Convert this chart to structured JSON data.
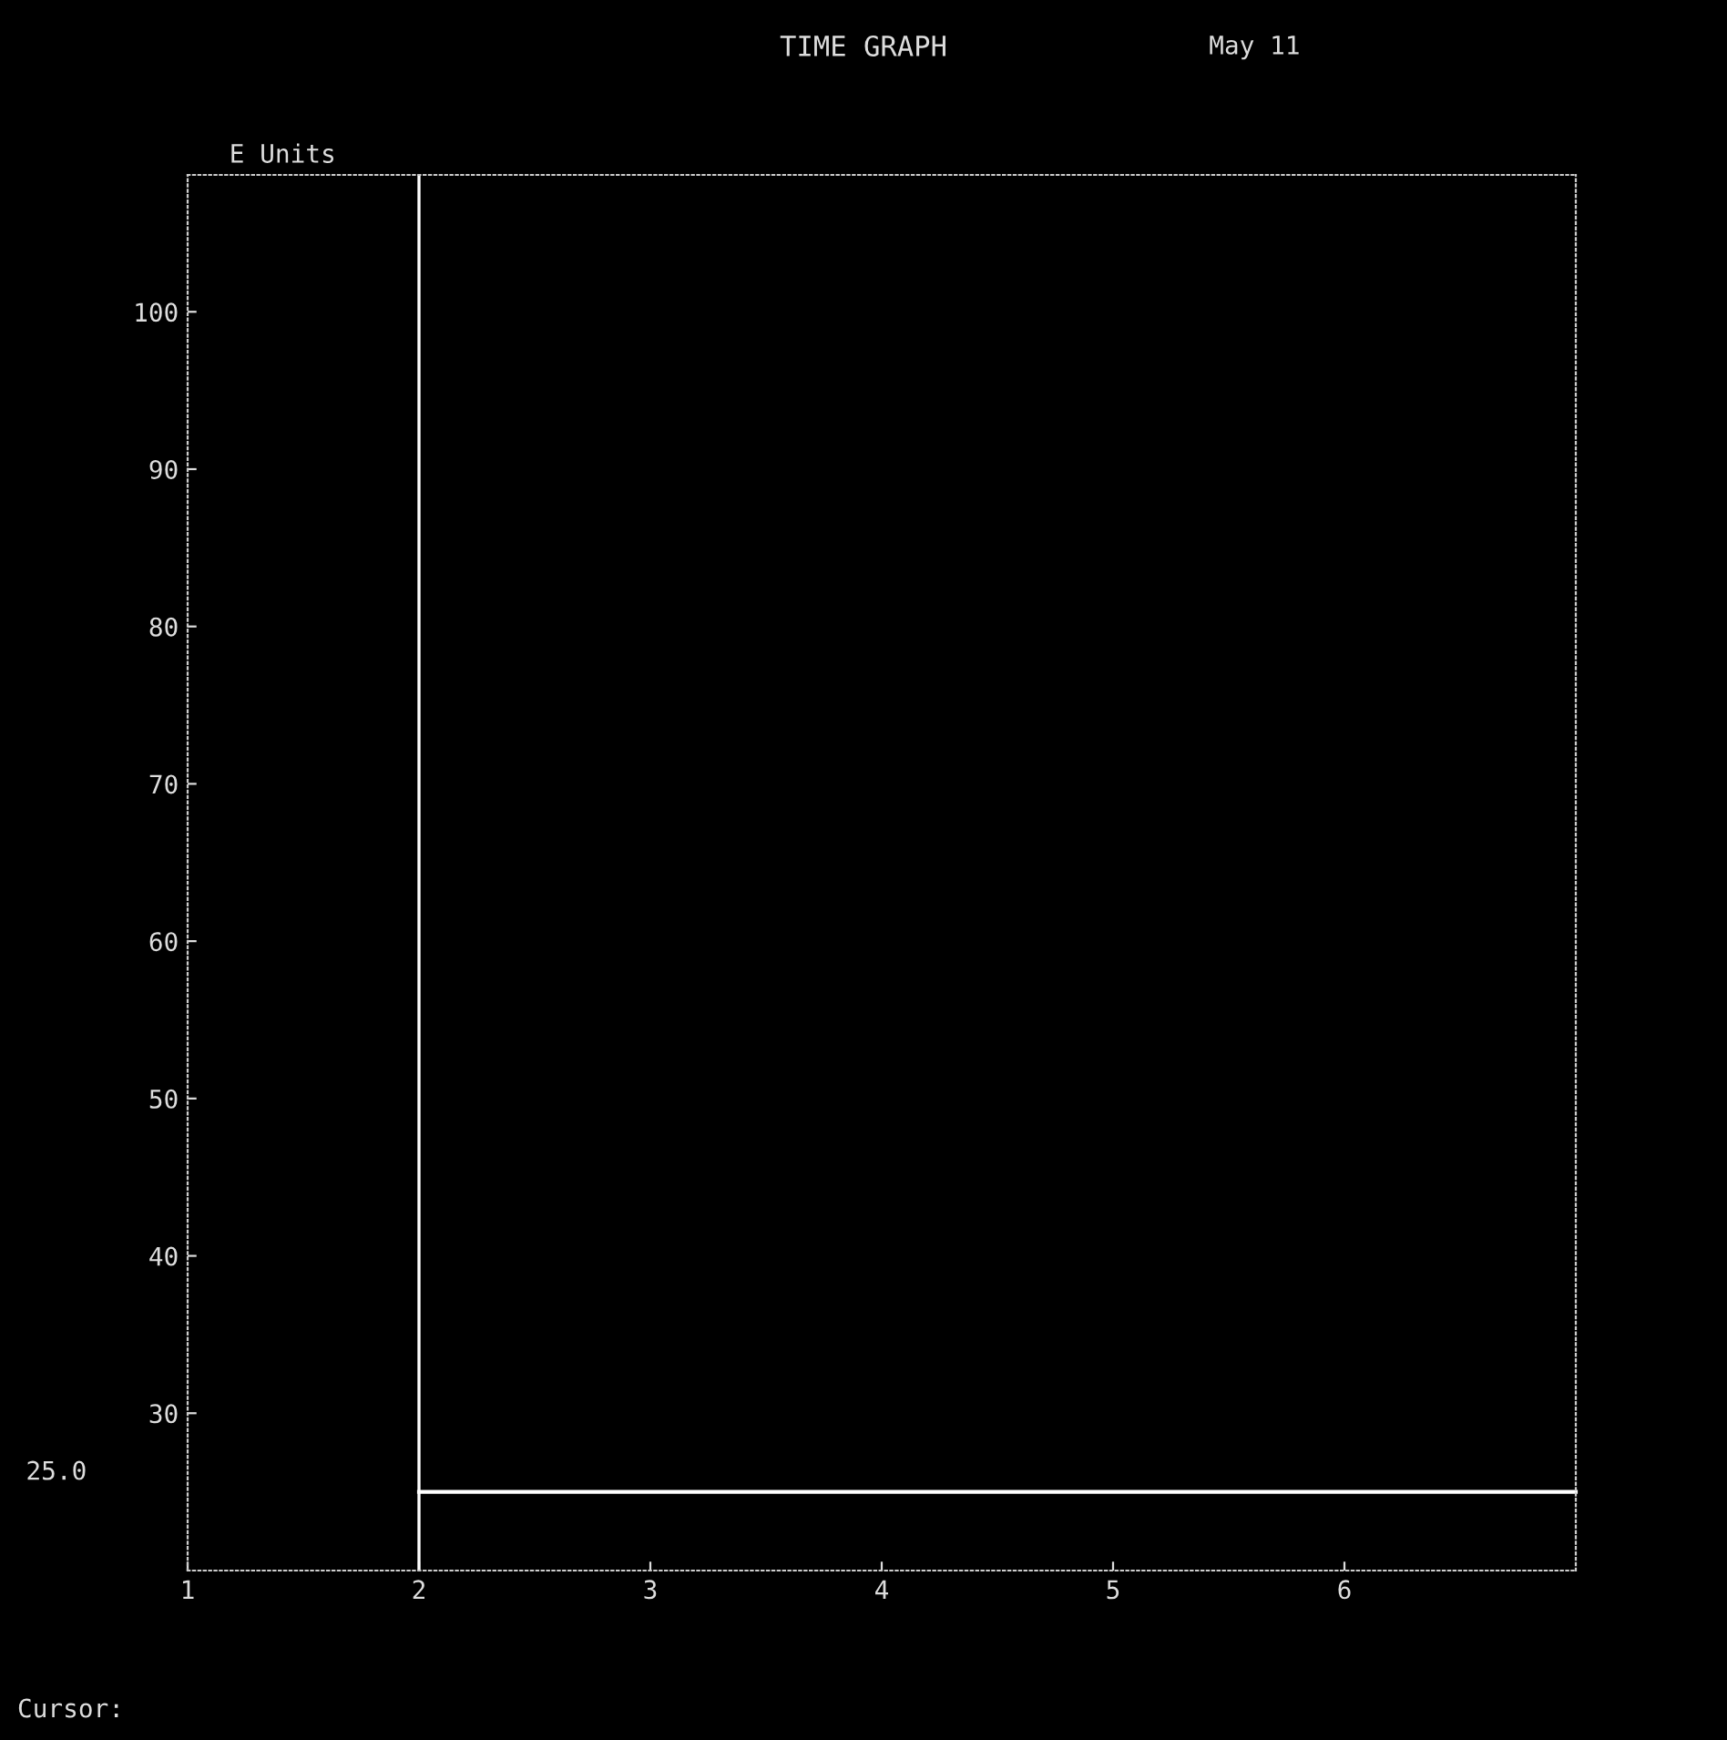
{
  "chart_data": {
    "type": "line",
    "title": "TIME GRAPH",
    "ylabel": "E Units",
    "annotations": [
      "May 11",
      "Cursor:",
      "25.0"
    ],
    "series": [
      {
        "color": "#ffffff",
        "x": [
          2,
          7
        ],
        "values": [
          25,
          25
        ]
      }
    ],
    "ref_lines": [
      {
        "axis": "x",
        "value": 2,
        "color": "#ffffff"
      }
    ],
    "xlim": [
      1,
      7
    ],
    "xticks": [
      1,
      2,
      3,
      4,
      5,
      6
    ],
    "ylim": [
      20,
      108.7
    ],
    "yticks": [
      30,
      40,
      50,
      60,
      70,
      80,
      90,
      100
    ],
    "legend": false,
    "marker": "none",
    "line_style": "solid"
  }
}
